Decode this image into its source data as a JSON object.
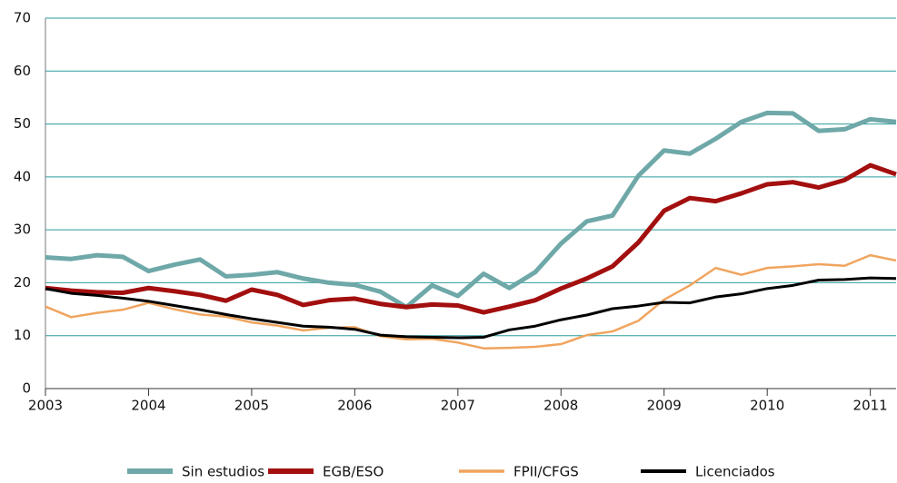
{
  "chart_data": {
    "type": "line",
    "x": [
      2003,
      2003.25,
      2003.5,
      2003.75,
      2004,
      2004.25,
      2004.5,
      2004.75,
      2005,
      2005.25,
      2005.5,
      2005.75,
      2006,
      2006.25,
      2006.5,
      2006.75,
      2007,
      2007.25,
      2007.5,
      2007.75,
      2008,
      2008.25,
      2008.5,
      2008.75,
      2009,
      2009.25,
      2009.5,
      2009.75,
      2010,
      2010.25,
      2010.5,
      2010.75,
      2011,
      2011.25
    ],
    "series": [
      {
        "name": "Sin estudios",
        "color": "#6fa8a8",
        "width": 5,
        "values": [
          24.8,
          24.5,
          25.2,
          24.9,
          22.2,
          23.4,
          24.4,
          21.2,
          21.5,
          22.0,
          20.8,
          20.0,
          19.6,
          18.3,
          15.4,
          19.5,
          17.5,
          21.7,
          19.0,
          22.0,
          27.4,
          31.6,
          32.7,
          40.2,
          45.0,
          44.4,
          47.2,
          50.4,
          52.1,
          52.0,
          48.7,
          49.0,
          50.9,
          50.4
        ]
      },
      {
        "name": "EGB/ESO",
        "color": "#a30f0f",
        "width": 5,
        "values": [
          19.0,
          18.5,
          18.2,
          18.1,
          19.0,
          18.4,
          17.7,
          16.6,
          18.7,
          17.7,
          15.8,
          16.7,
          17.0,
          16.0,
          15.4,
          15.9,
          15.7,
          14.4,
          15.5,
          16.7,
          18.9,
          20.8,
          23.1,
          27.6,
          33.6,
          36.0,
          35.4,
          36.9,
          38.6,
          39.0,
          38.0,
          39.4,
          42.2,
          40.5
        ]
      },
      {
        "name": "FPII/CFGS",
        "color": "#f0a45e",
        "width": 2.5,
        "values": [
          15.5,
          13.5,
          14.3,
          14.9,
          16.2,
          15.0,
          14.0,
          13.6,
          12.5,
          11.9,
          11.0,
          11.5,
          11.6,
          9.9,
          9.3,
          9.4,
          8.7,
          7.6,
          7.7,
          7.9,
          8.4,
          10.1,
          10.8,
          12.8,
          16.8,
          19.5,
          22.8,
          21.5,
          22.8,
          23.1,
          23.5,
          23.2,
          25.2,
          24.2
        ]
      },
      {
        "name": "Licenciados",
        "color": "#000000",
        "width": 3,
        "values": [
          18.9,
          18.0,
          17.6,
          17.1,
          16.5,
          15.7,
          14.9,
          14.0,
          13.2,
          12.5,
          11.8,
          11.6,
          11.2,
          10.1,
          9.8,
          9.7,
          9.6,
          9.7,
          11.1,
          11.8,
          13.0,
          13.9,
          15.1,
          15.6,
          16.3,
          16.2,
          17.3,
          17.9,
          18.9,
          19.5,
          20.5,
          20.6,
          20.9,
          20.8
        ]
      }
    ],
    "xlim": [
      2003,
      2011.25
    ],
    "xticks": [
      2003,
      2004,
      2005,
      2006,
      2007,
      2008,
      2009,
      2010,
      2011
    ],
    "ylim": [
      0,
      70
    ],
    "yticks": [
      0,
      10,
      20,
      30,
      40,
      50,
      60,
      70
    ],
    "grid": true,
    "grid_color": "#2e9b9b",
    "legend": "bottom"
  }
}
